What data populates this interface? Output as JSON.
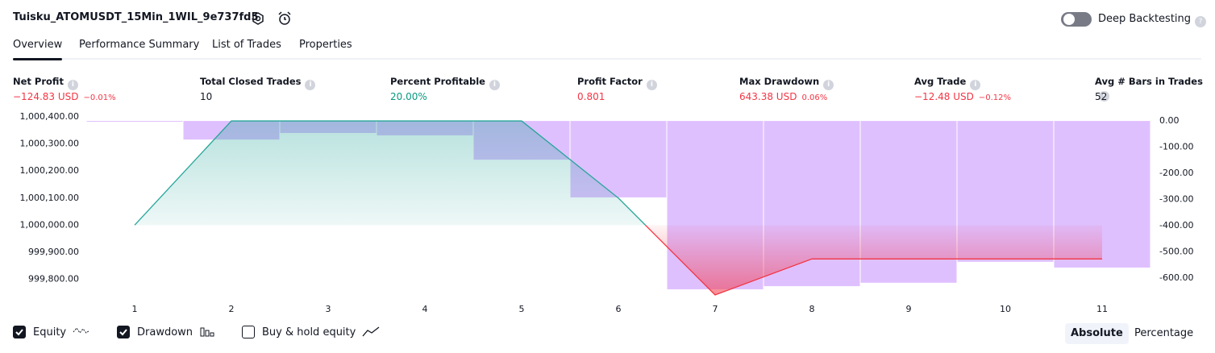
{
  "header": {
    "title": "Tuisku_ATOMUSDT_15Min_1WIL_9e737fd5",
    "toggle": "Deep Backtesting"
  },
  "tabs": [
    {
      "label": "Overview",
      "selected": true
    },
    {
      "label": "Performance Summary",
      "selected": false
    },
    {
      "label": "List of Trades",
      "selected": false
    },
    {
      "label": "Properties",
      "selected": false
    }
  ],
  "metrics": [
    {
      "label": "Net Profit",
      "value": "−124.83 USD",
      "percent": "−0.01%",
      "color": "#f23645"
    },
    {
      "label": "Total Closed Trades",
      "value": "10",
      "color": "#131722"
    },
    {
      "label": "Percent Profitable",
      "value": "20.00%",
      "color": "#089981"
    },
    {
      "label": "Profit Factor",
      "value": "0.801",
      "color": "#f23645"
    },
    {
      "label": "Max Drawdown",
      "value": "643.38 USD",
      "percent": "0.06%",
      "color": "#f23645"
    },
    {
      "label": "Avg Trade",
      "value": "−12.48 USD",
      "percent": "−0.12%",
      "color": "#f23645"
    },
    {
      "label": "Avg # Bars in Trades",
      "value": "52",
      "color": "#131722"
    }
  ],
  "chart_data": {
    "type": "line",
    "categories": [
      "1",
      "2",
      "3",
      "4",
      "5",
      "6",
      "7",
      "8",
      "9",
      "10",
      "11"
    ],
    "series": [
      {
        "name": "Equity",
        "checked": true,
        "color": "#26a69a",
        "negative_color": "#f23645",
        "values": [
          1000000,
          1000385,
          1000385,
          1000385,
          1000385,
          1000100,
          999742,
          999875,
          999875,
          999875,
          999875
        ]
      },
      {
        "name": "Drawdown",
        "checked": true,
        "type": "bar",
        "axis": "y2",
        "color": "rgba(196,140,255,0.55)",
        "values": [
          0,
          -71,
          -46,
          -55,
          -148,
          -292,
          -643,
          -631,
          -618,
          -538,
          -560
        ]
      }
    ],
    "ylim": [
      999730,
      1000415
    ],
    "yticks": [
      {
        "value": 1000400,
        "label": "1,000,400.00"
      },
      {
        "value": 1000300,
        "label": "1,000,300.00"
      },
      {
        "value": 1000200,
        "label": "1,000,200.00"
      },
      {
        "value": 1000100,
        "label": "1,000,100.00"
      },
      {
        "value": 1000000,
        "label": "1,000,000.00"
      },
      {
        "value": 999900,
        "label": "999,900.00"
      },
      {
        "value": 999800,
        "label": "999,800.00"
      }
    ],
    "y2lim": [
      31,
      -677
    ],
    "y2ticks": [
      {
        "value": 0,
        "label": "0.00"
      },
      {
        "value": -100,
        "label": "-100.00"
      },
      {
        "value": -200,
        "label": "-200.00"
      },
      {
        "value": -300,
        "label": "-300.00"
      },
      {
        "value": -400,
        "label": "-400.00"
      },
      {
        "value": -500,
        "label": "-500.00"
      },
      {
        "value": -600,
        "label": "-600.00"
      }
    ]
  },
  "extra_toggle": {
    "label": "Buy & hold equity",
    "checked": false
  },
  "modes": [
    {
      "label": "Absolute",
      "selected": true
    },
    {
      "label": "Percentage",
      "selected": false
    }
  ]
}
